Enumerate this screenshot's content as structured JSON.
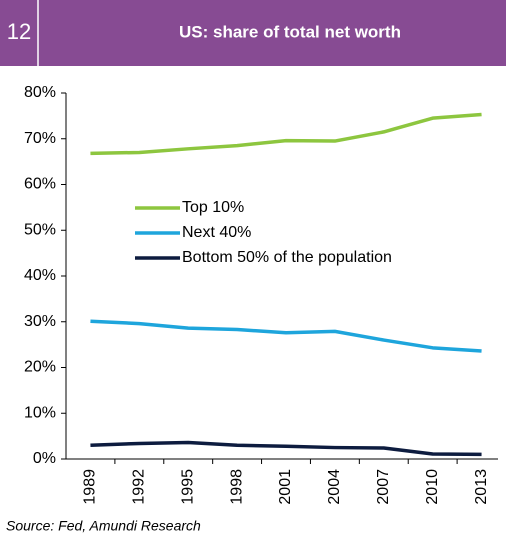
{
  "figure_number": "12",
  "chart_data": {
    "type": "line",
    "title": "US: share of total net worth",
    "source": "Source: Fed, Amundi Research",
    "categories": [
      "1989",
      "1992",
      "1995",
      "1998",
      "2001",
      "2004",
      "2007",
      "2010",
      "2013"
    ],
    "series": [
      {
        "name": "Top 10%",
        "color": "#8dc63f",
        "values": [
          66.8,
          67.0,
          67.8,
          68.5,
          69.6,
          69.5,
          71.5,
          74.5,
          75.3
        ]
      },
      {
        "name": "Next 40%",
        "color": "#1ea5dc",
        "values": [
          30.1,
          29.6,
          28.6,
          28.3,
          27.6,
          27.9,
          26.0,
          24.3,
          23.6
        ]
      },
      {
        "name": "Bottom 50% of the population",
        "color": "#0d1c3f",
        "values": [
          3.0,
          3.4,
          3.6,
          3.0,
          2.8,
          2.5,
          2.4,
          1.1,
          1.0
        ]
      }
    ],
    "ylim": [
      0,
      80
    ],
    "yticks": [
      {
        "value": 0,
        "label": "0%"
      },
      {
        "value": 10,
        "label": "10%"
      },
      {
        "value": 20,
        "label": "20%"
      },
      {
        "value": 30,
        "label": "30%"
      },
      {
        "value": 40,
        "label": "40%"
      },
      {
        "value": 50,
        "label": "50%"
      },
      {
        "value": 60,
        "label": "60%"
      },
      {
        "value": 70,
        "label": "70%"
      },
      {
        "value": 80,
        "label": "80%"
      }
    ],
    "grid": false,
    "legend": "center-left"
  }
}
